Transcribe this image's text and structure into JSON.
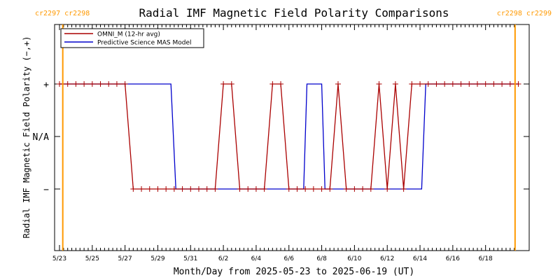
{
  "chart_data": {
    "type": "line",
    "title": "Radial IMF Magnetic Field Polarity Comparisons",
    "xlabel": "Month/Day from 2025-05-23 to 2025-06-19 (UT)",
    "ylabel": "Radial IMF Magnetic Field Polarity (−,+)",
    "x_unit": "days since 2025-05-23 00:00 UT",
    "xlim": [
      0,
      28
    ],
    "ylim": [
      -2,
      2
    ],
    "x_ticks": [
      {
        "x": 0,
        "label": "5/23"
      },
      {
        "x": 2,
        "label": "5/25"
      },
      {
        "x": 4,
        "label": "5/27"
      },
      {
        "x": 6,
        "label": "5/29"
      },
      {
        "x": 8,
        "label": "5/31"
      },
      {
        "x": 10,
        "label": "6/2"
      },
      {
        "x": 12,
        "label": "6/4"
      },
      {
        "x": 14,
        "label": "6/6"
      },
      {
        "x": 16,
        "label": "6/8"
      },
      {
        "x": 18,
        "label": "6/10"
      },
      {
        "x": 20,
        "label": "6/12"
      },
      {
        "x": 22,
        "label": "6/14"
      },
      {
        "x": 24,
        "label": "6/16"
      },
      {
        "x": 26,
        "label": "6/18"
      }
    ],
    "y_ticks": [
      {
        "y": 1,
        "label": "+"
      },
      {
        "y": 0,
        "label": "N/A"
      },
      {
        "y": -1,
        "label": "−"
      }
    ],
    "carrington_markers": [
      {
        "x": 0.2,
        "label": "cr2297 cr2298",
        "side": "left"
      },
      {
        "x": 27.8,
        "label": "cr2298 cr2299",
        "side": "right"
      }
    ],
    "legend_position": "top-left",
    "series": [
      {
        "name": "OMNI_M (12-hr avg)",
        "color": "#aa0000",
        "markers": true,
        "points": [
          [
            0,
            1
          ],
          [
            0.5,
            1
          ],
          [
            1,
            1
          ],
          [
            1.5,
            1
          ],
          [
            2,
            1
          ],
          [
            2.5,
            1
          ],
          [
            3,
            1
          ],
          [
            3.5,
            1
          ],
          [
            4,
            1
          ],
          [
            4.5,
            -1
          ],
          [
            5,
            -1
          ],
          [
            5.5,
            -1
          ],
          [
            6,
            -1
          ],
          [
            6.5,
            -1
          ],
          [
            7,
            -1
          ],
          [
            7.5,
            -1
          ],
          [
            8,
            -1
          ],
          [
            8.5,
            -1
          ],
          [
            9,
            -1
          ],
          [
            9.5,
            -1
          ],
          [
            10,
            1
          ],
          [
            10.5,
            1
          ],
          [
            11,
            -1
          ],
          [
            11.5,
            -1
          ],
          [
            12,
            -1
          ],
          [
            12.5,
            -1
          ],
          [
            13,
            1
          ],
          [
            13.5,
            1
          ],
          [
            14,
            -1
          ],
          [
            14.5,
            -1
          ],
          [
            15,
            -1
          ],
          [
            15.5,
            -1
          ],
          [
            16,
            -1
          ],
          [
            16.5,
            -1
          ],
          [
            17,
            1
          ],
          [
            17.5,
            -1
          ],
          [
            18,
            -1
          ],
          [
            18.5,
            -1
          ],
          [
            19,
            -1
          ],
          [
            19.5,
            1
          ],
          [
            20,
            -1
          ],
          [
            20.5,
            1
          ],
          [
            21,
            -1
          ],
          [
            21.5,
            1
          ],
          [
            22,
            1
          ],
          [
            22.5,
            1
          ],
          [
            23,
            1
          ],
          [
            23.5,
            1
          ],
          [
            24,
            1
          ],
          [
            24.5,
            1
          ],
          [
            25,
            1
          ],
          [
            25.5,
            1
          ],
          [
            26,
            1
          ],
          [
            26.5,
            1
          ],
          [
            27,
            1
          ],
          [
            27.5,
            1
          ],
          [
            28,
            1
          ]
        ]
      },
      {
        "name": "Predictive Science MAS Model",
        "color": "#0000cc",
        "markers": false,
        "points": [
          [
            0,
            1
          ],
          [
            6.8,
            1
          ],
          [
            7.1,
            -1
          ],
          [
            14.9,
            -1
          ],
          [
            15.1,
            1
          ],
          [
            16,
            1
          ],
          [
            16.2,
            -1
          ],
          [
            22.1,
            -1
          ],
          [
            22.35,
            1
          ],
          [
            28,
            1
          ]
        ]
      }
    ]
  }
}
